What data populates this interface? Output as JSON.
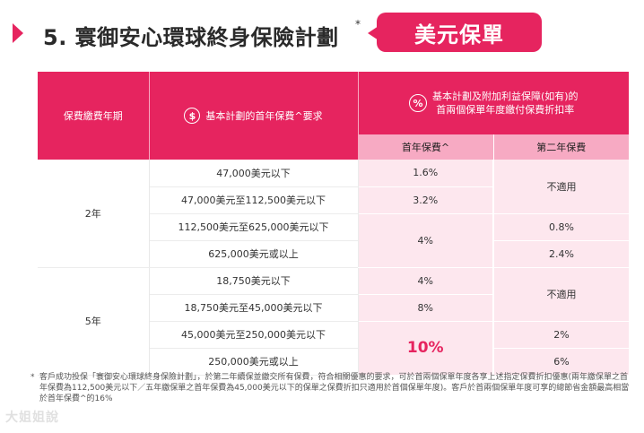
{
  "title": {
    "text": "5. 寰御安心環球終身保險計劃",
    "asterisk": "*",
    "badge": "美元保單"
  },
  "table": {
    "headers": {
      "term": "保費繳費年期",
      "premium": "基本計劃的首年保費^要求",
      "discount": [
        "基本計劃及附加利益保障(如有)的",
        "首兩個保單年度繳付保費折扣率"
      ],
      "first_year": "首年保費^",
      "second_year": "第二年保費",
      "coin_icon": "$",
      "percent_icon": "%"
    },
    "term_2": "2年",
    "term_5": "5年",
    "rows_2": {
      "p1": "47,000美元以下",
      "p2": "47,000美元至112,500美元以下",
      "p3": "112,500美元至625,000美元以下",
      "p4": "625,000美元或以上",
      "f1": "1.6%",
      "f2": "3.2%",
      "f34": "4%",
      "s12": "不適用",
      "s3": "0.8%",
      "s4": "2.4%"
    },
    "rows_5": {
      "p1": "18,750美元以下",
      "p2": "18,750美元至45,000美元以下",
      "p3": "45,000美元至250,000美元以下",
      "p4": "250,000美元或以上",
      "f1": "4%",
      "f2": "8%",
      "f34": "10%",
      "s12": "不適用",
      "s3": "2%",
      "s4": "6%"
    }
  },
  "footnote": {
    "star": "*",
    "text": "客戶成功投保「寰御安心環球終身保險計劃」，於第二年續保並繳交所有保費，符合相關優惠的要求，可於首兩個保單年度各享上述指定保費折扣優惠(兩年繳保單之首年保費為112,500美元以下／五年繳保單之首年保費為45,000美元以下的保單之保費折扣只適用於首個保單年度)。客戶於首兩個保單年度可享的總節省金額最高相當於首年保費^的16%"
  },
  "watermark": "大姐姐說"
}
